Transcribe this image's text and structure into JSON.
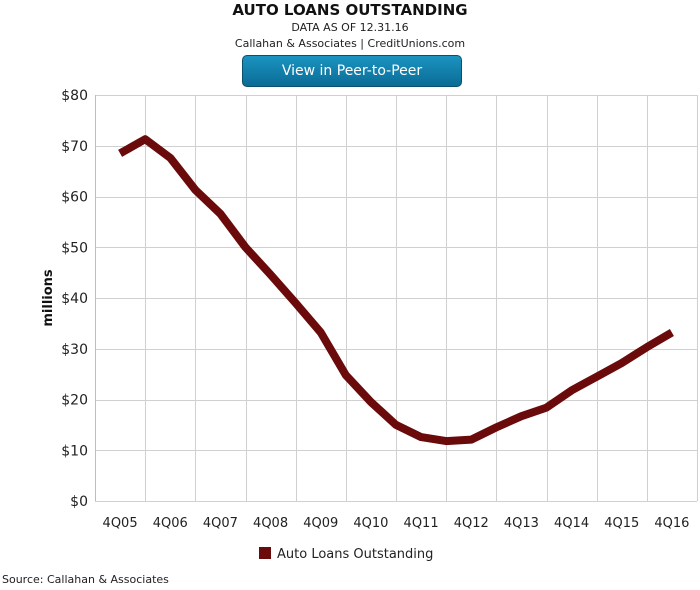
{
  "header": {
    "title": "AUTO LOANS OUTSTANDING",
    "data_as_of": "DATA AS OF 12.31.16",
    "credit": "Callahan & Associates | CreditUnions.com",
    "button_label": "View in Peer-to-Peer"
  },
  "footer": {
    "source": "Source: Callahan & Associates"
  },
  "chart_data": {
    "type": "line",
    "title": "AUTO LOANS OUTSTANDING",
    "ylabel": "millions",
    "xlabel": "",
    "ylim": [
      0,
      80
    ],
    "yticks": [
      "$0",
      "$10",
      "$20",
      "$30",
      "$40",
      "$50",
      "$60",
      "$70",
      "$80"
    ],
    "categories": [
      "4Q05",
      "4Q06",
      "4Q07",
      "4Q08",
      "4Q09",
      "4Q10",
      "4Q11",
      "4Q12",
      "4Q13",
      "4Q14",
      "4Q15",
      "4Q16"
    ],
    "grid": true,
    "legend_position": "bottom",
    "series": [
      {
        "name": "Auto Loans Outstanding",
        "color": "#6b0a0a",
        "x": [
          0,
          0.5,
          1,
          1.5,
          2,
          2.5,
          3,
          3.5,
          4,
          4.5,
          5,
          5.5,
          6,
          6.5,
          7,
          7.5,
          8,
          8.5,
          9,
          9.5,
          10,
          10.5,
          11
        ],
        "values": [
          68.5,
          71.3,
          67.6,
          61.3,
          56.6,
          50.0,
          44.6,
          39.0,
          33.2,
          24.8,
          19.5,
          15.0,
          12.6,
          11.8,
          12.1,
          14.5,
          16.7,
          18.4,
          21.8,
          24.5,
          27.2,
          30.3,
          33.2
        ]
      }
    ]
  }
}
